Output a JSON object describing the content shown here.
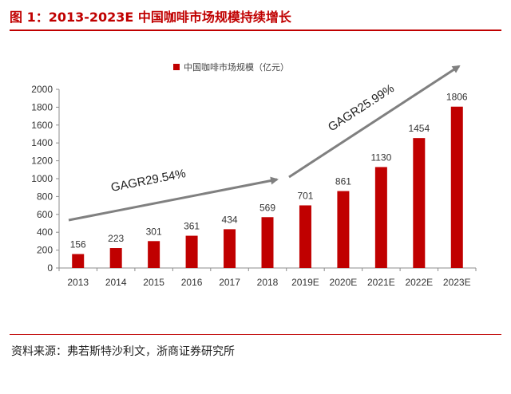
{
  "figure_title": "图 1：2013-2023E 中国咖啡市场规模持续增长",
  "source_note": "资料来源：弗若斯特沙利文，浙商证券研究所",
  "colors": {
    "bar": "#c00000",
    "title": "#c00000",
    "arrow": "#808080"
  },
  "chart_data": {
    "type": "bar",
    "categories": [
      "2013",
      "2014",
      "2015",
      "2016",
      "2017",
      "2018",
      "2019E",
      "2020E",
      "2021E",
      "2022E",
      "2023E"
    ],
    "series": [
      {
        "name": "中国咖啡市场规模（亿元）",
        "values": [
          156,
          223,
          301,
          361,
          434,
          569,
          701,
          861,
          1130,
          1454,
          1806
        ]
      }
    ],
    "y_ticks": [
      0,
      200,
      400,
      600,
      800,
      1000,
      1200,
      1400,
      1600,
      1800,
      2000
    ],
    "ylim": [
      0,
      2000
    ],
    "legend_position": "top-center",
    "grid": false,
    "annotations": [
      "GAGR29.54%",
      "GAGR25.99%"
    ]
  }
}
